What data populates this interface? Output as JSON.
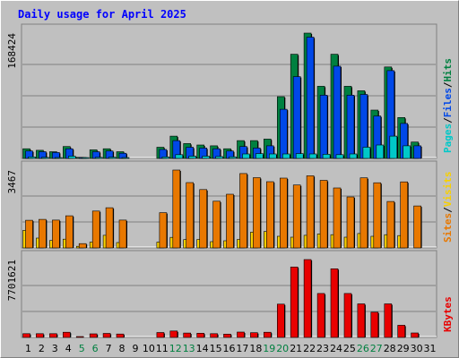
{
  "chart_data": {
    "type": "bar",
    "title": "Daily usage for April 2025",
    "days": [
      "1",
      "2",
      "3",
      "4",
      "5",
      "6",
      "7",
      "8",
      "9",
      "10",
      "11",
      "12",
      "13",
      "14",
      "15",
      "16",
      "17",
      "18",
      "19",
      "20",
      "21",
      "22",
      "23",
      "24",
      "25",
      "26",
      "27",
      "28",
      "29",
      "30",
      "31"
    ],
    "weekend_days": [
      "5",
      "6",
      "12",
      "13",
      "19",
      "20",
      "26",
      "27"
    ],
    "panels": [
      {
        "name": "hits-files-pages",
        "max_label": "168424",
        "max_value": 168424,
        "legend": [
          {
            "text": "Pages",
            "color": "#00c8c8"
          },
          {
            "text": "/",
            "color": "#000000"
          },
          {
            "text": "Files",
            "color": "#0048e8"
          },
          {
            "text": "/",
            "color": "#000000"
          },
          {
            "text": "Hits",
            "color": "#008040"
          }
        ],
        "series": [
          {
            "name": "Hits",
            "color": "#008040",
            "values": [
              13000,
              11000,
              9000,
              16000,
              1500,
              11500,
              13000,
              9000,
              0,
              0,
              15000,
              30000,
              20000,
              18000,
              17000,
              13000,
              24000,
              24000,
              26000,
              83000,
              140000,
              168424,
              97000,
              140000,
              97000,
              91000,
              65000,
              123000,
              55000,
              22000,
              0
            ]
          },
          {
            "name": "Files",
            "color": "#0048e8",
            "values": [
              10000,
              9000,
              8000,
              13000,
              1000,
              9000,
              10000,
              7000,
              0,
              0,
              12000,
              24000,
              15000,
              14000,
              13000,
              10000,
              16000,
              14000,
              17000,
              66000,
              110000,
              163000,
              85000,
              124000,
              85000,
              86000,
              57000,
              118000,
              47000,
              17000,
              0
            ]
          },
          {
            "name": "Pages",
            "color": "#00c8c8",
            "values": [
              2000,
              1500,
              1200,
              3000,
              200,
              1500,
              1700,
              1200,
              0,
              0,
              2000,
              5000,
              3000,
              3000,
              2500,
              2200,
              6000,
              6500,
              6000,
              6000,
              6500,
              6000,
              5500,
              5000,
              6000,
              15000,
              18000,
              30000,
              17000,
              0,
              0
            ]
          }
        ]
      },
      {
        "name": "visits-sites",
        "max_label": "3467",
        "max_value": 3467,
        "legend": [
          {
            "text": "Sites",
            "color": "#e87800"
          },
          {
            "text": "/",
            "color": "#000000"
          },
          {
            "text": "Visits",
            "color": "#f8d000"
          }
        ],
        "series": [
          {
            "name": "Visits",
            "color": "#f8d000",
            "values": [
              780,
              440,
              330,
              390,
              70,
              260,
              560,
              240,
              0,
              0,
              260,
              470,
              370,
              380,
              280,
              320,
              380,
              700,
              730,
              520,
              480,
              560,
              620,
              590,
              480,
              640,
              520,
              590,
              550,
              0,
              0
            ]
          },
          {
            "name": "Sites",
            "color": "#e87800",
            "values": [
              1230,
              1270,
              1240,
              1430,
              190,
              1640,
              1790,
              1240,
              0,
              0,
              1570,
              3467,
              2910,
              2600,
              2080,
              2390,
              3310,
              3130,
              2950,
              3110,
              2800,
              3210,
              3010,
              2670,
              2270,
              3120,
              2900,
              2070,
              2940,
              1870,
              0
            ]
          }
        ]
      },
      {
        "name": "kbytes",
        "max_label": "7701621",
        "max_value": 7701621,
        "legend": [
          {
            "text": "KBytes",
            "color": "#e80000"
          }
        ],
        "series": [
          {
            "name": "KBytes",
            "color": "#e80000",
            "values": [
              370000,
              370000,
              370000,
              510000,
              80000,
              350000,
              400000,
              340000,
              0,
              0,
              490000,
              640000,
              430000,
              420000,
              370000,
              330000,
              530000,
              470000,
              510000,
              3290000,
              6970000,
              7701621,
              4350000,
              6790000,
              4350000,
              3320000,
              2500000,
              3320000,
              1200000,
              440000,
              0
            ]
          }
        ]
      }
    ]
  },
  "colors": {
    "background": "#c0c0c0",
    "plot_background": "#c0c0c0",
    "grid": "#808080",
    "title": "#0000ff",
    "weekday_label": "#000000",
    "weekend_label": "#008040"
  }
}
